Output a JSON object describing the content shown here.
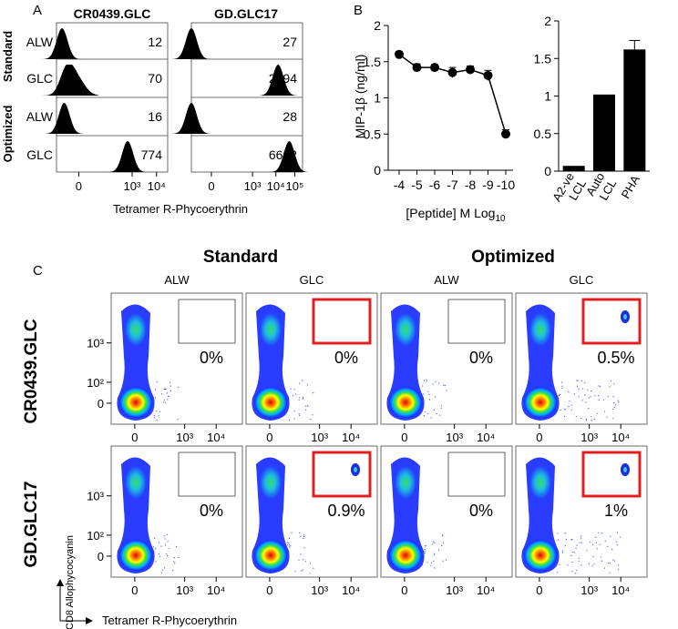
{
  "panel_labels": {
    "a": "A",
    "b": "B",
    "c": "C"
  },
  "chart_data": [
    {
      "type": "histogram",
      "panel": "A",
      "columns": [
        "CR0439.GLC",
        "GD.GLC17"
      ],
      "group_labels": [
        "Standard",
        "Optimized"
      ],
      "row_labels": [
        "ALW",
        "GLC",
        "ALW",
        "GLC"
      ],
      "values": [
        [
          "12",
          "27"
        ],
        [
          "70",
          "2294"
        ],
        [
          "16",
          "28"
        ],
        [
          "774",
          "6602"
        ]
      ],
      "peaks": [
        [
          0.05,
          0.0
        ],
        [
          0.12,
          0.78
        ],
        [
          0.07,
          0.0
        ],
        [
          0.64,
          0.88
        ]
      ],
      "x_ticks_left": [
        "0",
        "10³",
        "10⁴"
      ],
      "x_ticks_right": [
        "0",
        "10³",
        "10⁴",
        "10⁵"
      ],
      "xlabel": "Tetramer R-Phycoerythrin"
    },
    {
      "type": "line",
      "panel": "B",
      "categories": [
        "-4",
        "-5",
        "-6",
        "-7",
        "-8",
        "-9",
        "-10"
      ],
      "values": [
        1.6,
        1.42,
        1.42,
        1.35,
        1.39,
        1.31,
        0.5
      ],
      "errors": [
        0.04,
        0.05,
        0.04,
        0.07,
        0.05,
        0.07,
        0.06
      ],
      "ylim": [
        0,
        2
      ],
      "y_ticks": [
        "0",
        "0.5",
        "1",
        "1.5",
        "2"
      ],
      "ylabel": "MIP-1β (ng/ml)",
      "xlabel": "[Peptide] M Log",
      "xlabel_sub": "10"
    },
    {
      "type": "bar",
      "panel": "B",
      "categories": [
        "A2-ve LCL",
        "Auto LCL",
        "PHA"
      ],
      "category_lines": [
        [
          "A2-ve",
          "LCL"
        ],
        [
          "Auto",
          "LCL"
        ],
        [
          "PHA"
        ]
      ],
      "values": [
        0.07,
        1.02,
        1.62
      ],
      "errors": [
        0.0,
        0.0,
        0.12
      ],
      "ylim": [
        0,
        2
      ],
      "y_ticks": [
        "0",
        "0.5",
        "1",
        "1.5",
        "2"
      ]
    },
    {
      "type": "scatter",
      "panel": "C",
      "group_labels": [
        "Standard",
        "Optimized"
      ],
      "column_labels": [
        "ALW",
        "GLC",
        "ALW",
        "GLC"
      ],
      "row_labels": [
        "CR0439.GLC",
        "GD.GLC17"
      ],
      "percentages": [
        [
          "0%",
          "0%",
          "0%",
          "0.5%"
        ],
        [
          "0%",
          "0.9%",
          "0%",
          "1%"
        ]
      ],
      "gate_highlighted": [
        [
          false,
          true,
          false,
          true
        ],
        [
          false,
          true,
          false,
          true
        ]
      ],
      "cluster_present": [
        [
          false,
          false,
          false,
          true
        ],
        [
          false,
          true,
          false,
          true
        ]
      ],
      "x_ticks": [
        "0",
        "10³",
        "10⁴"
      ],
      "y_ticks": [
        "0",
        "10²",
        "10³"
      ],
      "xlabel": "Tetramer R-Phycoerythrin",
      "ylabel": "CD8 Allophycocyanin"
    }
  ],
  "colors": {
    "gate_highlight": "#e02020",
    "gate_normal": "#555555",
    "bar": "#000000"
  }
}
